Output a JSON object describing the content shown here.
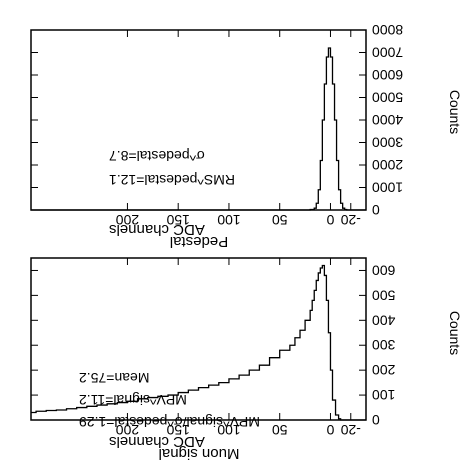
{
  "orientation": "rotated 180 degrees",
  "chart_data": [
    {
      "type": "line",
      "title": "Muon signal",
      "xlabel": "ADC channels",
      "ylabel": "Counts",
      "xlim": [
        -35,
        295
      ],
      "ylim": [
        0,
        650
      ],
      "xticks": [
        "-20",
        "0",
        "50",
        "100",
        "150",
        "200"
      ],
      "xtick_values": [
        -20,
        0,
        50,
        100,
        150,
        200
      ],
      "yticks": [
        "0",
        "100",
        "200",
        "300",
        "400",
        "500",
        "600"
      ],
      "ytick_values": [
        0,
        100,
        200,
        300,
        400,
        500,
        600
      ],
      "annotations": [
        "Mean=75.2",
        "MPV^signal=11.2",
        "MPV^signal/σ^pedestal=1.29"
      ],
      "series": [
        {
          "x": [
            -35,
            -15,
            -10,
            -8,
            -5,
            -2,
            0,
            2,
            4,
            6,
            8,
            10,
            12,
            14,
            16,
            18,
            20,
            25,
            30,
            35,
            40,
            50,
            60,
            70,
            80,
            90,
            100,
            110,
            120,
            130,
            140,
            150,
            160,
            170,
            180,
            190,
            200,
            210,
            220,
            230,
            240,
            250,
            260,
            270,
            280,
            290,
            295
          ],
          "y": [
            0,
            0,
            5,
            20,
            80,
            200,
            350,
            480,
            580,
            620,
            610,
            590,
            560,
            520,
            480,
            440,
            400,
            360,
            330,
            300,
            280,
            250,
            220,
            200,
            180,
            165,
            150,
            140,
            130,
            120,
            110,
            100,
            95,
            90,
            85,
            75,
            70,
            65,
            60,
            55,
            50,
            45,
            40,
            38,
            35,
            30,
            30
          ]
        }
      ]
    },
    {
      "type": "line",
      "title": "Pedestal",
      "xlabel": "ADC channels",
      "ylabel": "Counts",
      "xlim": [
        -35,
        295
      ],
      "ylim": [
        0,
        8000
      ],
      "xticks": [
        "-20",
        "0",
        "50",
        "100",
        "150",
        "200"
      ],
      "xtick_values": [
        -20,
        0,
        50,
        100,
        150,
        200
      ],
      "yticks": [
        "0",
        "1000",
        "2000",
        "3000",
        "4000",
        "5000",
        "6000",
        "7000",
        "8000"
      ],
      "ytick_values": [
        0,
        1000,
        2000,
        3000,
        4000,
        5000,
        6000,
        7000,
        8000
      ],
      "annotations": [
        "RMS^pedestal=12.1",
        "σ^pedestal=8.7"
      ],
      "series": [
        {
          "x": [
            -35,
            -20,
            -16,
            -14,
            -12,
            -10,
            -8,
            -6,
            -4,
            -2,
            0,
            2,
            4,
            6,
            8,
            10,
            12,
            14,
            16,
            20,
            295
          ],
          "y": [
            0,
            0,
            20,
            80,
            300,
            900,
            2200,
            4000,
            5600,
            6800,
            7200,
            6800,
            5600,
            4000,
            2200,
            900,
            300,
            80,
            20,
            0,
            0
          ]
        }
      ]
    }
  ]
}
